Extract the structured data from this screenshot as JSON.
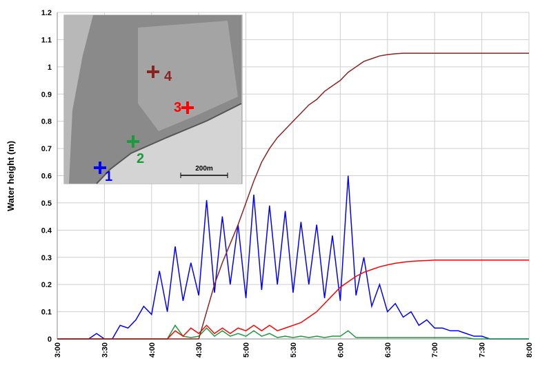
{
  "chart_data": {
    "type": "line",
    "y_label": "Water height (m)",
    "scale_bar": "200m",
    "x": [
      180,
      185,
      190,
      195,
      200,
      205,
      210,
      215,
      220,
      225,
      230,
      235,
      240,
      245,
      250,
      255,
      260,
      265,
      270,
      275,
      280,
      285,
      290,
      295,
      300,
      305,
      310,
      315,
      320,
      325,
      330,
      335,
      340,
      345,
      350,
      355,
      360,
      365,
      370,
      375,
      380,
      385,
      390,
      395,
      400,
      405,
      410,
      415,
      420,
      425,
      430,
      435,
      440,
      445,
      450,
      455,
      460,
      465,
      470,
      475,
      480
    ],
    "xlim": [
      180,
      480
    ],
    "xticks": [
      {
        "value": 180,
        "label": "3:00"
      },
      {
        "value": 210,
        "label": "3:30"
      },
      {
        "value": 240,
        "label": "4:00"
      },
      {
        "value": 270,
        "label": "4:30"
      },
      {
        "value": 300,
        "label": "5:00"
      },
      {
        "value": 330,
        "label": "5:30"
      },
      {
        "value": 360,
        "label": "6:00"
      },
      {
        "value": 390,
        "label": "6:30"
      },
      {
        "value": 420,
        "label": "7:00"
      },
      {
        "value": 450,
        "label": "7:30"
      },
      {
        "value": 480,
        "label": "8:00"
      }
    ],
    "ylim": [
      0,
      1.2
    ],
    "yticks": [
      0,
      0.1,
      0.2,
      0.3,
      0.4,
      0.5,
      0.6,
      0.7,
      0.8,
      0.9,
      1,
      1.1,
      1.2
    ],
    "grid": true,
    "series": [
      {
        "name": "1",
        "color": "#0000ff",
        "values": [
          0,
          0,
          0,
          0,
          0,
          0.02,
          0,
          0,
          0.05,
          0.04,
          0.07,
          0.12,
          0.09,
          0.25,
          0.1,
          0.34,
          0.14,
          0.28,
          0.16,
          0.51,
          0.17,
          0.45,
          0.2,
          0.42,
          0.15,
          0.53,
          0.18,
          0.49,
          0.2,
          0.47,
          0.17,
          0.43,
          0.2,
          0.42,
          0.15,
          0.38,
          0.14,
          0.6,
          0.16,
          0.3,
          0.12,
          0.2,
          0.1,
          0.13,
          0.08,
          0.1,
          0.05,
          0.07,
          0.04,
          0.04,
          0.03,
          0.03,
          0.02,
          0.01,
          0.01,
          0,
          0,
          0,
          0,
          0,
          0
        ]
      },
      {
        "name": "2",
        "color": "#1a9a3a",
        "values": [
          0,
          0,
          0,
          0,
          0,
          0,
          0,
          0,
          0,
          0,
          0,
          0,
          0,
          0,
          0,
          0.05,
          0.01,
          0.005,
          0.01,
          0.04,
          0.01,
          0.03,
          0.01,
          0.02,
          0.01,
          0.03,
          0.01,
          0.02,
          0.005,
          0.01,
          0.005,
          0.01,
          0.005,
          0.01,
          0.005,
          0.01,
          0.01,
          0.03,
          0.005,
          0.005,
          0.005,
          0.005,
          0.005,
          0.005,
          0.005,
          0.005,
          0.005,
          0.005,
          0.005,
          0.005,
          0.005,
          0.005,
          0.005,
          0,
          0,
          0,
          0,
          0,
          0,
          0,
          0
        ]
      },
      {
        "name": "3",
        "color": "#ff0000",
        "values": [
          0,
          0,
          0,
          0,
          0,
          0,
          0,
          0,
          0,
          0,
          0,
          0,
          0,
          0,
          0,
          0.03,
          0.01,
          0.04,
          0.02,
          0.05,
          0.02,
          0.04,
          0.02,
          0.04,
          0.03,
          0.05,
          0.03,
          0.05,
          0.03,
          0.04,
          0.05,
          0.06,
          0.08,
          0.1,
          0.13,
          0.16,
          0.19,
          0.21,
          0.23,
          0.245,
          0.255,
          0.265,
          0.272,
          0.278,
          0.282,
          0.285,
          0.287,
          0.288,
          0.29,
          0.29,
          0.29,
          0.29,
          0.29,
          0.29,
          0.29,
          0.29,
          0.29,
          0.29,
          0.29,
          0.29,
          0.29
        ]
      },
      {
        "name": "4",
        "color": "#8b2323",
        "values": [
          0,
          0,
          0,
          0,
          0,
          0,
          0,
          0,
          0,
          0,
          0,
          0,
          0,
          0,
          0,
          0,
          0,
          0,
          0,
          0.1,
          0.2,
          0.28,
          0.35,
          0.42,
          0.5,
          0.58,
          0.65,
          0.7,
          0.74,
          0.77,
          0.8,
          0.83,
          0.86,
          0.88,
          0.91,
          0.93,
          0.95,
          0.98,
          1,
          1.02,
          1.03,
          1.04,
          1.045,
          1.048,
          1.05,
          1.05,
          1.05,
          1.05,
          1.05,
          1.05,
          1.05,
          1.05,
          1.05,
          1.05,
          1.05,
          1.05,
          1.05,
          1.05,
          1.05,
          1.05,
          1.05
        ]
      }
    ]
  }
}
